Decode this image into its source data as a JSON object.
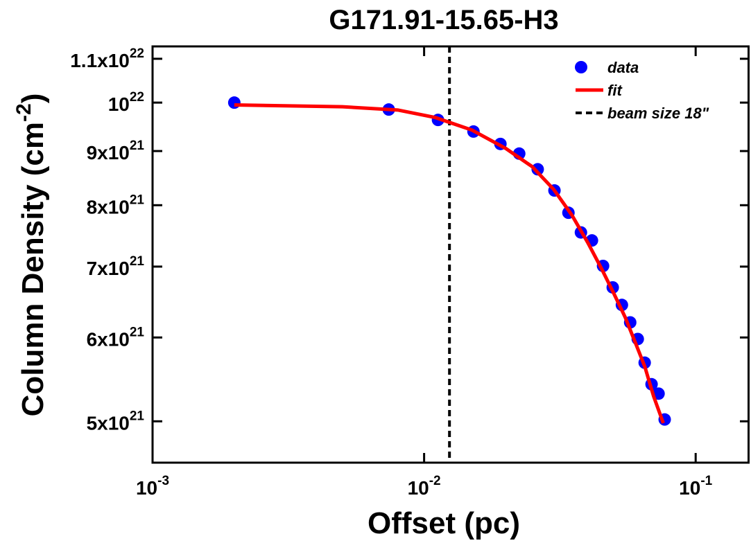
{
  "chart_data": {
    "type": "scatter",
    "title": "G171.91-15.65-H3",
    "xlabel": "Offset (pc)",
    "ylabel": {
      "text": "Column Density (cm",
      "sup": "-2",
      "end": ")"
    },
    "xscale": "log",
    "yscale": "log",
    "xlim": [
      0.001,
      0.158
    ],
    "ylim": [
      4.57e+21,
      1.13e+22
    ],
    "xticks": [
      {
        "value": 0.001,
        "label": "10",
        "sup": "-3"
      },
      {
        "value": 0.01,
        "label": "10",
        "sup": "-2"
      },
      {
        "value": 0.1,
        "label": "10",
        "sup": "-1"
      }
    ],
    "yticks": [
      {
        "value": 1.1e+22,
        "label": "1.1x10",
        "sup": "22"
      },
      {
        "value": 1e+22,
        "label": "10",
        "sup": "22"
      },
      {
        "value": 9e+21,
        "label": "9x10",
        "sup": "21"
      },
      {
        "value": 8e+21,
        "label": "8x10",
        "sup": "21"
      },
      {
        "value": 7e+21,
        "label": "7x10",
        "sup": "21"
      },
      {
        "value": 6e+21,
        "label": "6x10",
        "sup": "21"
      },
      {
        "value": 5e+21,
        "label": "5x10",
        "sup": "21"
      }
    ],
    "legend": "upper right",
    "series": [
      {
        "name": "data",
        "type": "scatter",
        "color": "#0000ff",
        "x": [
          0.002,
          0.00741,
          0.01125,
          0.0152,
          0.0191,
          0.0224,
          0.0262,
          0.0302,
          0.034,
          0.0378,
          0.0415,
          0.0456,
          0.0495,
          0.0535,
          0.0574,
          0.0612,
          0.0649,
          0.0688,
          0.073,
          0.0769
        ],
        "values": [
          1e+22,
          9.85e+21,
          9.63e+21,
          9.39e+21,
          9.14e+21,
          8.95e+21,
          8.65e+21,
          8.26e+21,
          7.87e+21,
          7.54e+21,
          7.41e+21,
          7.01e+21,
          6.69e+21,
          6.44e+21,
          6.2e+21,
          5.98e+21,
          5.68e+21,
          5.42e+21,
          5.31e+21,
          5.02e+21
        ]
      },
      {
        "name": "fit",
        "type": "line",
        "color": "#ff0000",
        "x": [
          0.002,
          0.005,
          0.008,
          0.011,
          0.015,
          0.02,
          0.025,
          0.03,
          0.035,
          0.04,
          0.045,
          0.05,
          0.055,
          0.06,
          0.065,
          0.07,
          0.076
        ],
        "values": [
          9.95e+21,
          9.91e+21,
          9.84e+21,
          9.68e+21,
          9.42e+21,
          9.05e+21,
          8.7e+21,
          8.28e+21,
          7.83e+21,
          7.38e+21,
          6.97e+21,
          6.6e+21,
          6.27e+21,
          5.93e+21,
          5.63e+21,
          5.28e+21,
          4.98e+21
        ]
      }
    ],
    "vlines": [
      {
        "name": "beam size 18\"",
        "x": 0.0124,
        "color": "#000000",
        "style": "dashed"
      }
    ]
  }
}
